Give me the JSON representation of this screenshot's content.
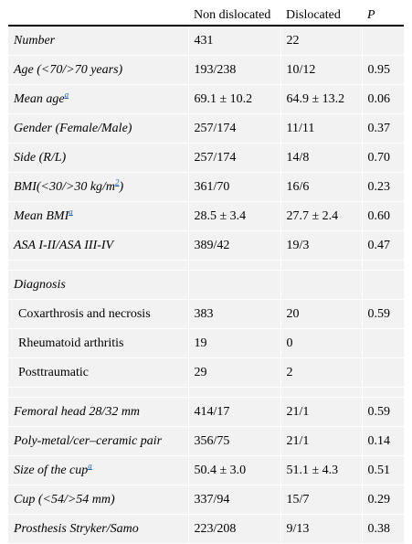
{
  "header": {
    "col1": "",
    "col2": "Non dislocated",
    "col3": "Dislocated",
    "col4": "P"
  },
  "rows": [
    {
      "label": "Number",
      "nd": "431",
      "d": "22",
      "p": ""
    },
    {
      "label": "Age (<70/>70 years)",
      "nd": "193/238",
      "d": "10/12",
      "p": "0.95"
    },
    {
      "label": "Mean age",
      "sup": "a",
      "nd": "69.1 ± 10.2",
      "d": "64.9 ± 13.2",
      "p": "0.06"
    },
    {
      "label": "Gender (Female/Male)",
      "nd": "257/174",
      "d": "11/11",
      "p": "0.37"
    },
    {
      "label": "Side (R/L)",
      "nd": "257/174",
      "d": "14/8",
      "p": "0.70"
    },
    {
      "label_pre": "BMI(<30/>30 kg/m",
      "label_link": "2",
      "label_post": ")",
      "nd": "361/70",
      "d": "16/6",
      "p": "0.23"
    },
    {
      "label": "Mean BMI",
      "sup": "a",
      "nd": "28.5 ± 3.4",
      "d": "27.7 ± 2.4",
      "p": "0.60"
    },
    {
      "label": "ASA I-II/ASA III-IV",
      "nd": "389/42",
      "d": "19/3",
      "p": "0.47"
    },
    {
      "label": "Diagnosis"
    },
    {
      "label": "Coxarthrosis and necrosis",
      "nd": "383",
      "d": "20",
      "p": "0.59"
    },
    {
      "label": "Rheumatoid arthritis",
      "nd": "19",
      "d": "0",
      "p": ""
    },
    {
      "label": "Posttraumatic",
      "nd": "29",
      "d": "2",
      "p": ""
    },
    {
      "label": "Femoral head 28/32 mm",
      "nd": "414/17",
      "d": "21/1",
      "p": "0.59"
    },
    {
      "label": "Poly-metal/cer–ceramic pair",
      "nd": "356/75",
      "d": "21/1",
      "p": "0.14"
    },
    {
      "label": "Size of the cup",
      "sup": "a",
      "nd": "50.4 ± 3.0",
      "d": "51.1 ± 4.3",
      "p": "0.51"
    },
    {
      "label": "Cup (<54/>54 mm)",
      "nd": "337/94",
      "d": "15/7",
      "p": "0.29"
    },
    {
      "label": "Prosthesis Stryker/Samo",
      "nd": "223/208",
      "d": "9/13",
      "p": "0.38"
    }
  ]
}
